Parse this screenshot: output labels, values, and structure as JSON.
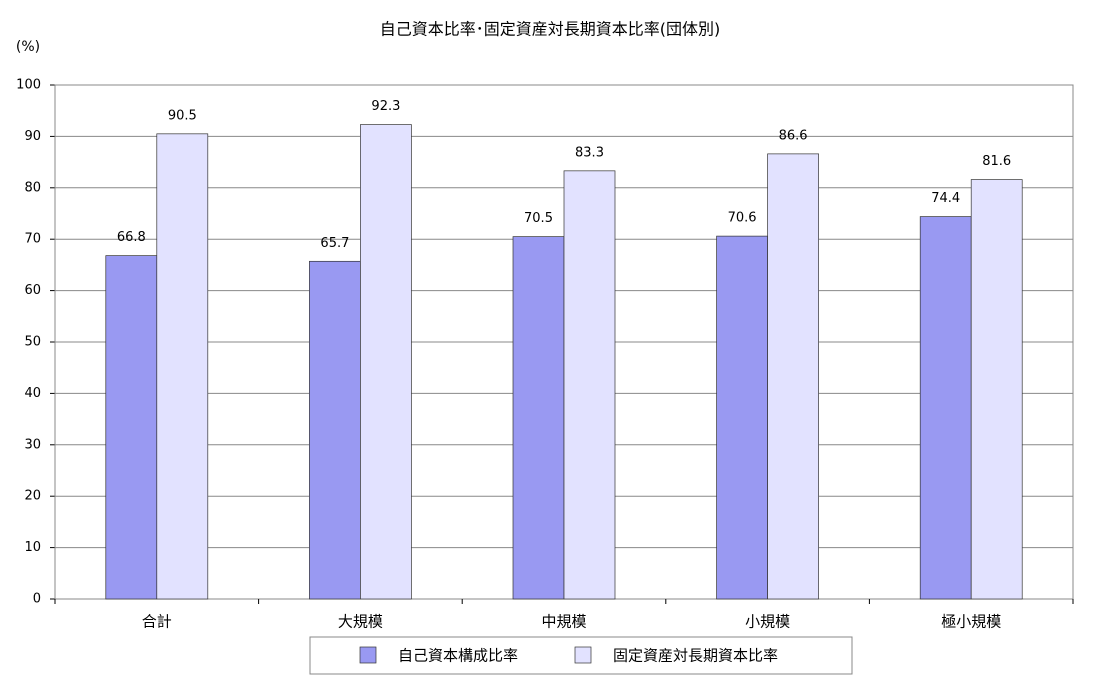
{
  "chart_data": {
    "type": "bar",
    "title": "自己資本比率･固定資産対長期資本比率(団体別)",
    "y_label": "(%)",
    "categories": [
      "合計",
      "大規模",
      "中規模",
      "小規模",
      "極小規模"
    ],
    "series": [
      {
        "name": "自己資本構成比率",
        "color": "#9999f2",
        "values": [
          66.8,
          65.7,
          70.5,
          70.6,
          74.4
        ]
      },
      {
        "name": "固定資産対長期資本比率",
        "color": "#e2e2ff",
        "values": [
          90.5,
          92.3,
          83.3,
          86.6,
          81.6
        ]
      }
    ],
    "ylim": [
      0,
      100
    ],
    "yticks": [
      0,
      10,
      20,
      30,
      40,
      50,
      60,
      70,
      80,
      90,
      100
    ],
    "grid": true
  }
}
